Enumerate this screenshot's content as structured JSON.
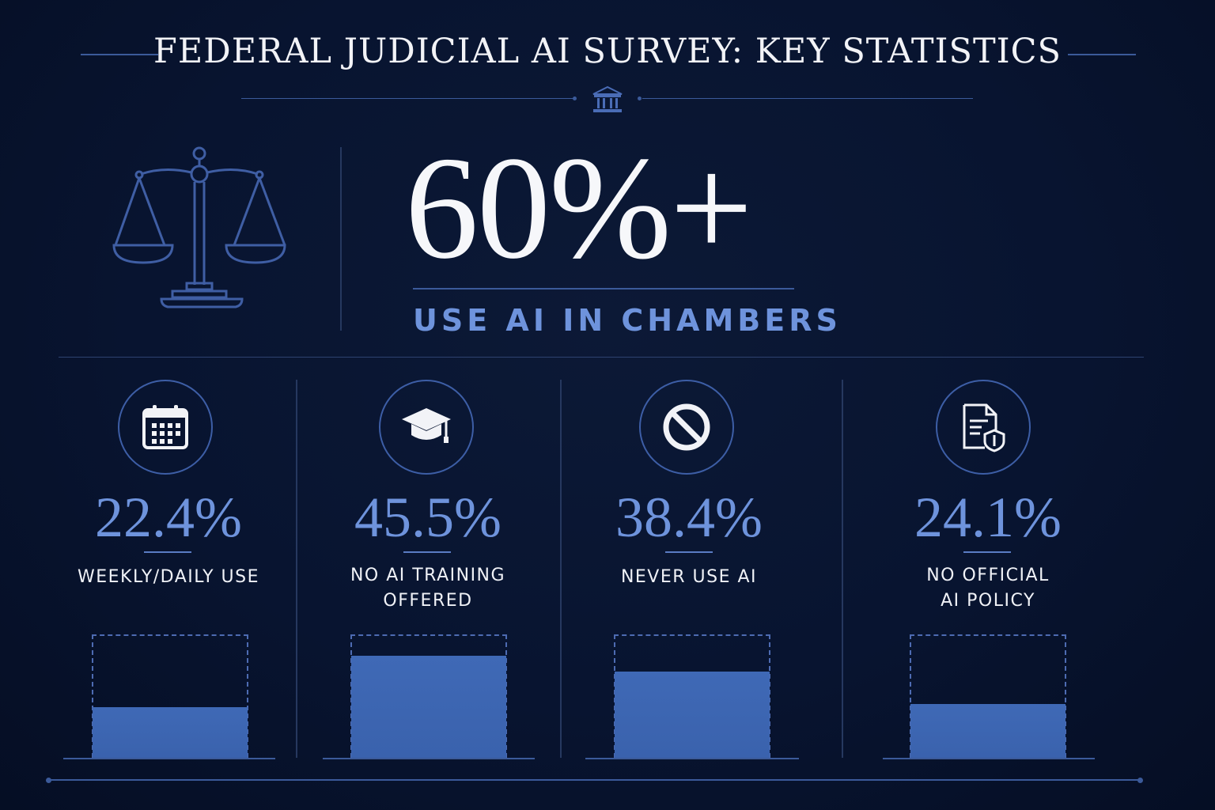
{
  "header": {
    "title": "FEDERAL JUDICIAL AI SURVEY: KEY STATISTICS"
  },
  "hero": {
    "value": "60%+",
    "caption": "USE AI IN CHAMBERS",
    "icon": "scales-of-justice-icon"
  },
  "colors": {
    "background": "#081430",
    "accent": "#6e93dc",
    "bar": "#3d66b2",
    "text": "#f2f3f7"
  },
  "stats": [
    {
      "value": "22.4%",
      "label": "WEEKLY/DAILY USE",
      "icon": "calendar-icon",
      "level": 0.224
    },
    {
      "value": "45.5%",
      "label": "NO AI TRAINING\nOFFERED",
      "icon": "graduation-cap-icon",
      "level": 0.455
    },
    {
      "value": "38.4%",
      "label": "NEVER USE AI",
      "icon": "prohibited-icon",
      "level": 0.384
    },
    {
      "value": "24.1%",
      "label": "NO OFFICIAL\nAI POLICY",
      "icon": "policy-document-icon",
      "level": 0.241
    }
  ]
}
